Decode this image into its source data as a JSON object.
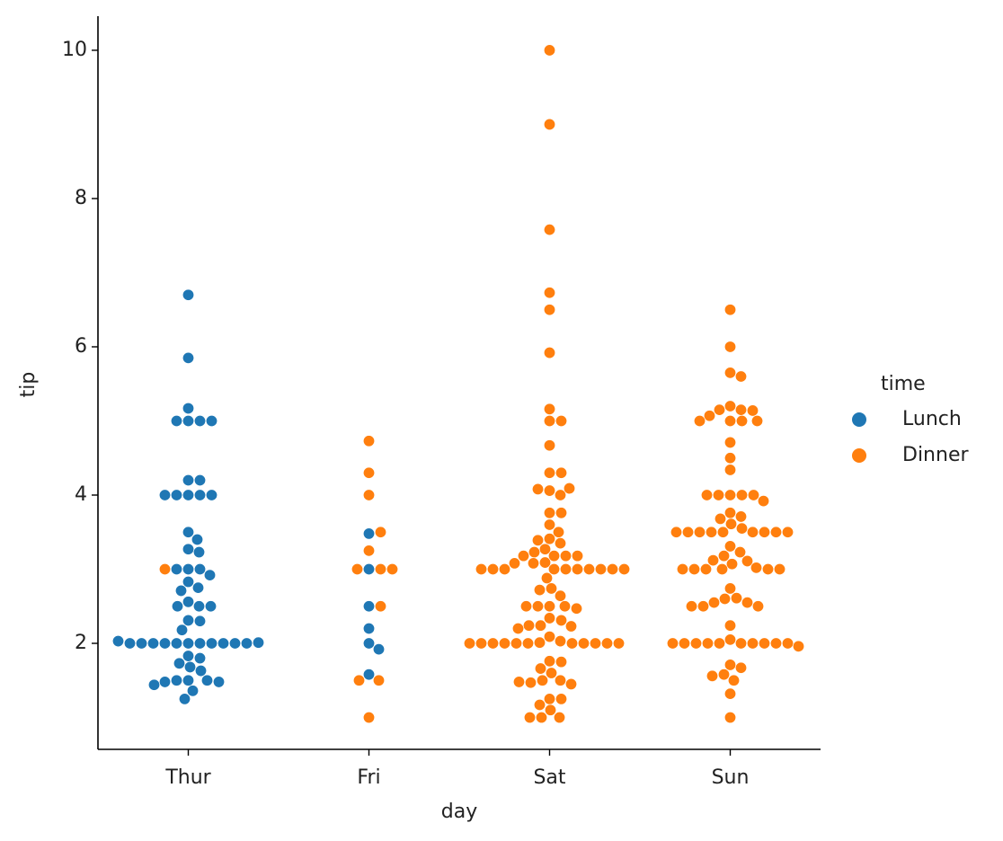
{
  "chart_data": {
    "type": "swarm",
    "xlabel": "day",
    "ylabel": "tip",
    "categories": [
      "Thur",
      "Fri",
      "Sat",
      "Sun"
    ],
    "ylim": [
      0.57,
      10.46
    ],
    "yticks": [
      2,
      4,
      6,
      8,
      10
    ],
    "legend_title": "time",
    "legend": "right",
    "series": [
      {
        "name": "Lunch",
        "color": "#1f77b4",
        "values": [
          [
            6.7,
            5.85,
            5.17,
            5,
            5,
            5,
            5,
            4.2,
            4.2,
            4,
            4,
            4,
            4,
            4,
            3.5,
            3.4,
            3.27,
            3.23,
            3,
            3,
            3,
            2.92,
            2.83,
            2.75,
            2.71,
            2.56,
            2.5,
            2.5,
            2.5,
            2.31,
            2.3,
            2.18,
            2,
            2,
            2,
            2,
            2,
            2,
            2,
            2,
            2,
            2,
            2,
            2.01,
            2.03,
            1.83,
            1.8,
            1.73,
            1.68,
            1.63,
            1.5,
            1.5,
            1.5,
            1.48,
            1.48,
            1.44,
            1.36,
            1.25
          ],
          [
            3.48,
            3,
            2.5,
            2.2,
            2,
            1.92,
            1.58
          ],
          [],
          []
        ]
      },
      {
        "name": "Dinner",
        "color": "#ff7f0e",
        "values": [
          [
            3
          ],
          [
            4.73,
            4.3,
            4,
            3.5,
            3.25,
            3,
            3,
            3,
            2.5,
            1.5,
            1.5,
            1
          ],
          [
            10,
            9,
            7.58,
            6.73,
            6.5,
            5.92,
            5.16,
            5,
            5,
            4.67,
            4.3,
            4.3,
            4.06,
            4,
            4.08,
            4.09,
            3.76,
            3.76,
            3.6,
            3.5,
            3.41,
            3.39,
            3.35,
            3.27,
            3.23,
            3.18,
            3.18,
            3.18,
            3.18,
            3.09,
            3.08,
            3.08,
            3,
            3,
            3,
            3,
            3,
            3,
            3,
            3,
            3,
            3,
            2.88,
            2.74,
            2.72,
            2.64,
            2.5,
            2.5,
            2.5,
            2.5,
            2.47,
            2.34,
            2.31,
            2.24,
            2.24,
            2.23,
            2.2,
            2.09,
            2.03,
            2.01,
            2,
            2,
            2,
            2,
            2,
            2,
            2,
            2,
            2,
            2,
            2,
            1.76,
            1.75,
            1.66,
            1.6,
            1.5,
            1.5,
            1.47,
            1.45,
            1.48,
            1.25,
            1.25,
            1.17,
            1.1,
            1,
            1,
            1
          ],
          [
            6.5,
            6,
            5.65,
            5.6,
            5.2,
            5.15,
            5.15,
            5.14,
            5.07,
            5,
            5,
            5,
            5,
            4.71,
            4.5,
            4.34,
            4,
            4,
            4,
            4,
            4,
            3.92,
            3.76,
            3.71,
            3.68,
            3.61,
            3.55,
            3.5,
            3.5,
            3.5,
            3.5,
            3.5,
            3.5,
            3.5,
            3.5,
            3.5,
            3.31,
            3.23,
            3.18,
            3.12,
            3.11,
            3.07,
            3.02,
            3,
            3,
            3,
            3,
            3,
            3,
            2.74,
            2.61,
            2.6,
            2.55,
            2.55,
            2.5,
            2.5,
            2.5,
            2.24,
            2.05,
            2,
            2,
            2,
            2,
            2,
            2,
            2,
            2,
            2,
            2,
            1.96,
            1.71,
            1.67,
            1.58,
            1.56,
            1.5,
            1.32,
            1
          ]
        ]
      }
    ]
  }
}
